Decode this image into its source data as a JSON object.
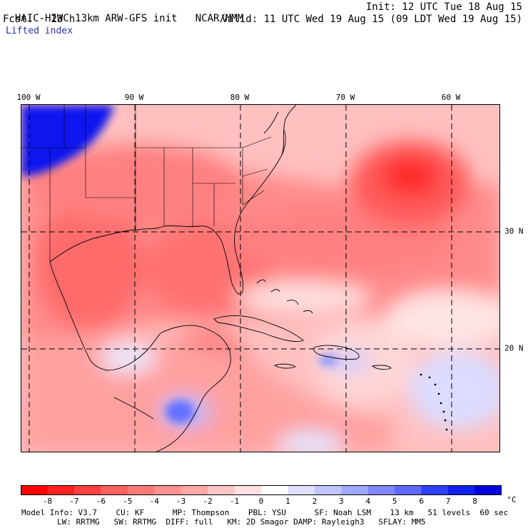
{
  "header": {
    "model": "HAIC-HIWC 13km ARW-GFS init",
    "center": "NCAR/MMM",
    "init": "Init: 12 UTC Tue 18 Aug 15",
    "fcst": "Fcst:   23 h",
    "valid": "Valid: 11 UTC Wed 19 Aug 15 (09 LDT Wed 19 Aug 15)",
    "field": "Lifted index"
  },
  "map": {
    "lon_labels": [
      "100 W",
      "90 W",
      "80 W",
      "70 W",
      "60 W"
    ],
    "lat_labels": [
      "30 N",
      "20 N"
    ]
  },
  "colorbar": {
    "unit": "°C",
    "ticks": [
      "-8",
      "-7",
      "-6",
      "-5",
      "-4",
      "-3",
      "-2",
      "-1",
      "0",
      "1",
      "2",
      "3",
      "4",
      "5",
      "6",
      "7",
      "8"
    ],
    "colors": [
      "#ff0000",
      "#ff2020",
      "#ff4040",
      "#ff6060",
      "#ff7878",
      "#ff9090",
      "#ffa8a8",
      "#ffc4c4",
      "#ffe0e0",
      "#ffffff",
      "#e0e0ff",
      "#c0c4ff",
      "#a0a8ff",
      "#8088ff",
      "#6068ff",
      "#3040ff",
      "#1020ee",
      "#0000dd"
    ]
  },
  "info": {
    "line1": "Model Info: V3.7    CU: KF      MP: Thompson    PBL: YSU      SF: Noah LSM    13 km   51 levels  60 sec",
    "line2": "LW: RRTMG   SW: RRTMG  DIFF: full   KM: 2D Smagor DAMP: Rayleigh3   SFLAY: MM5"
  }
}
